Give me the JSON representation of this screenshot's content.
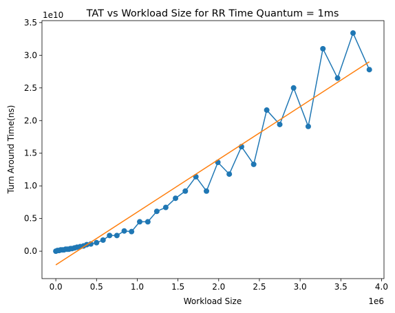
{
  "chart_data": {
    "type": "line",
    "title": "TAT vs Workload Size for RR Time Quantum = 1ms",
    "xlabel": "Workload Size",
    "ylabel": "Turn Around Time(ns)",
    "x_offset_label": "1e6",
    "y_offset_label": "1e10",
    "xlim": [
      -0.17,
      4.03
    ],
    "ylim": [
      -0.42,
      3.53
    ],
    "x_ticks": [
      0.0,
      0.5,
      1.0,
      1.5,
      2.0,
      2.5,
      3.0,
      3.5,
      4.0
    ],
    "x_tick_labels": [
      "0.0",
      "0.5",
      "1.0",
      "1.5",
      "2.0",
      "2.5",
      "3.0",
      "3.5",
      "4.0"
    ],
    "y_ticks": [
      0.0,
      0.5,
      1.0,
      1.5,
      2.0,
      2.5,
      3.0,
      3.5
    ],
    "y_tick_labels": [
      "0.0",
      "0.5",
      "1.0",
      "1.5",
      "2.0",
      "2.5",
      "3.0",
      "3.5"
    ],
    "grid": false,
    "legend": "none",
    "series": [
      {
        "color": "#1f77b4",
        "marker": "circle",
        "x": [
          0.0,
          0.02,
          0.04,
          0.06,
          0.08,
          0.1,
          0.12,
          0.14,
          0.16,
          0.18,
          0.2,
          0.23,
          0.26,
          0.3,
          0.34,
          0.38,
          0.43,
          0.5,
          0.58,
          0.66,
          0.75,
          0.84,
          0.93,
          1.03,
          1.13,
          1.24,
          1.35,
          1.47,
          1.59,
          1.72,
          1.85,
          1.99,
          2.13,
          2.28,
          2.43,
          2.59,
          2.75,
          2.92,
          3.1,
          3.28,
          3.46,
          3.65,
          3.85
        ],
        "y": [
          0.0,
          0.01,
          0.01,
          0.02,
          0.02,
          0.02,
          0.03,
          0.03,
          0.03,
          0.04,
          0.04,
          0.05,
          0.06,
          0.07,
          0.08,
          0.1,
          0.11,
          0.13,
          0.17,
          0.24,
          0.24,
          0.31,
          0.3,
          0.45,
          0.45,
          0.61,
          0.67,
          0.81,
          0.92,
          1.14,
          0.92,
          1.36,
          1.18,
          1.6,
          1.33,
          2.16,
          1.94,
          2.5,
          1.91,
          3.1,
          2.65,
          3.34,
          2.78
        ]
      },
      {
        "color": "#ff7f0e",
        "marker": "none",
        "x": [
          0.0,
          3.85
        ],
        "y": [
          -0.21,
          2.9
        ]
      }
    ]
  }
}
